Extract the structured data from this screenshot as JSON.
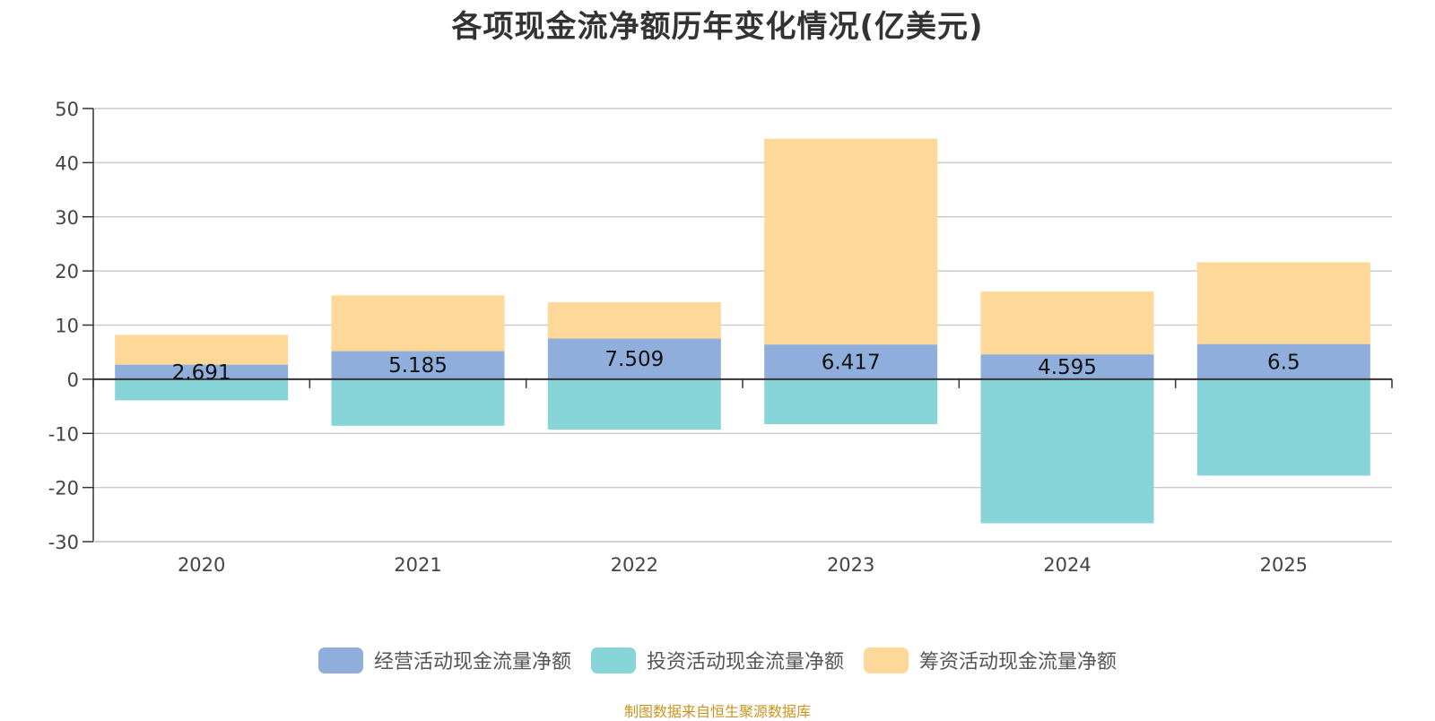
{
  "chart_data": {
    "type": "bar",
    "stacked": true,
    "title": "各项现金流净额历年变化情况(亿美元)",
    "categories": [
      "2020",
      "2021",
      "2022",
      "2023",
      "2024",
      "2025"
    ],
    "ylim": [
      -30,
      50
    ],
    "yticks": [
      50,
      40,
      30,
      20,
      10,
      0,
      -10,
      -20,
      -30
    ],
    "grid": true,
    "legend_position": "bottom",
    "series": [
      {
        "name": "经营活动现金流量净额",
        "color": "#8faedb",
        "values": [
          2.691,
          5.185,
          7.509,
          6.417,
          4.595,
          6.5
        ],
        "labels": [
          "2.691",
          "5.185",
          "7.509",
          "6.417",
          "4.595",
          "6.5"
        ]
      },
      {
        "name": "投资活动现金流量净额",
        "color": "#87d5d9",
        "values": [
          -3.9,
          -8.6,
          -9.3,
          -8.3,
          -26.6,
          -17.8
        ]
      },
      {
        "name": "筹资活动现金流量净额",
        "color": "#fed898",
        "values": [
          5.5,
          10.3,
          6.7,
          38.0,
          11.6,
          15.1
        ]
      }
    ],
    "source": "制图数据来自恒生聚源数据库"
  }
}
